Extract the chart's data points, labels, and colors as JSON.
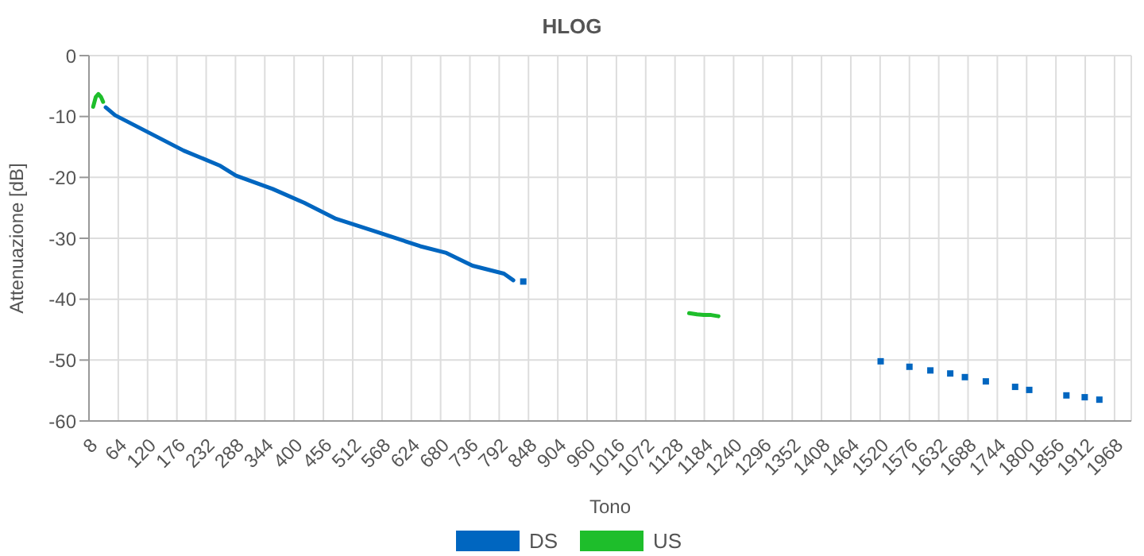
{
  "chart_data": {
    "type": "line",
    "title": "HLOG",
    "xlabel": "Tono",
    "ylabel": "Attenuazione [dB]",
    "xlim": [
      8,
      2000
    ],
    "xticks": [
      8,
      64,
      120,
      176,
      232,
      288,
      344,
      400,
      456,
      512,
      568,
      624,
      680,
      736,
      792,
      848,
      904,
      960,
      1016,
      1072,
      1128,
      1184,
      1240,
      1296,
      1352,
      1408,
      1464,
      1520,
      1576,
      1632,
      1688,
      1744,
      1800,
      1856,
      1912,
      1968
    ],
    "ylim": [
      -60,
      0
    ],
    "yticks": [
      -60,
      -50,
      -40,
      -30,
      -20,
      -10,
      0
    ],
    "series": [
      {
        "name": "DS",
        "color": "#0066c0",
        "x": [
          40,
          58,
          128,
          189,
          259,
          289,
          359,
          420,
          480,
          560,
          641,
          691,
          741,
          801,
          819
        ],
        "values": [
          -8.5,
          -9.8,
          -12.9,
          -15.6,
          -18.1,
          -19.7,
          -21.9,
          -24.2,
          -26.8,
          -29.0,
          -31.3,
          -32.4,
          -34.5,
          -35.8,
          -36.9
        ]
      },
      {
        "type": "scatter",
        "marker": "square",
        "color": "#0066c0",
        "x": [
          838,
          1521,
          1576,
          1616,
          1654,
          1682,
          1722,
          1778,
          1805,
          1876,
          1911,
          1939
        ],
        "values": [
          -37.1,
          -50.2,
          -51.1,
          -51.7,
          -52.2,
          -52.8,
          -53.5,
          -54.4,
          -54.9,
          -55.8,
          -56.1,
          -56.5
        ]
      },
      {
        "name": "US",
        "color": "#1ebe2b",
        "x": [
          16,
          21,
          26,
          31,
          35
        ],
        "values": [
          -8.4,
          -6.8,
          -6.3,
          -6.8,
          -7.6
        ]
      },
      {
        "color": "#1ebe2b",
        "x": [
          1155,
          1170,
          1183,
          1197,
          1211
        ],
        "values": [
          -42.3,
          -42.5,
          -42.6,
          -42.6,
          -42.8
        ]
      }
    ],
    "grid": true,
    "legend": "bottom",
    "marker": "none",
    "line_style": "solid"
  }
}
